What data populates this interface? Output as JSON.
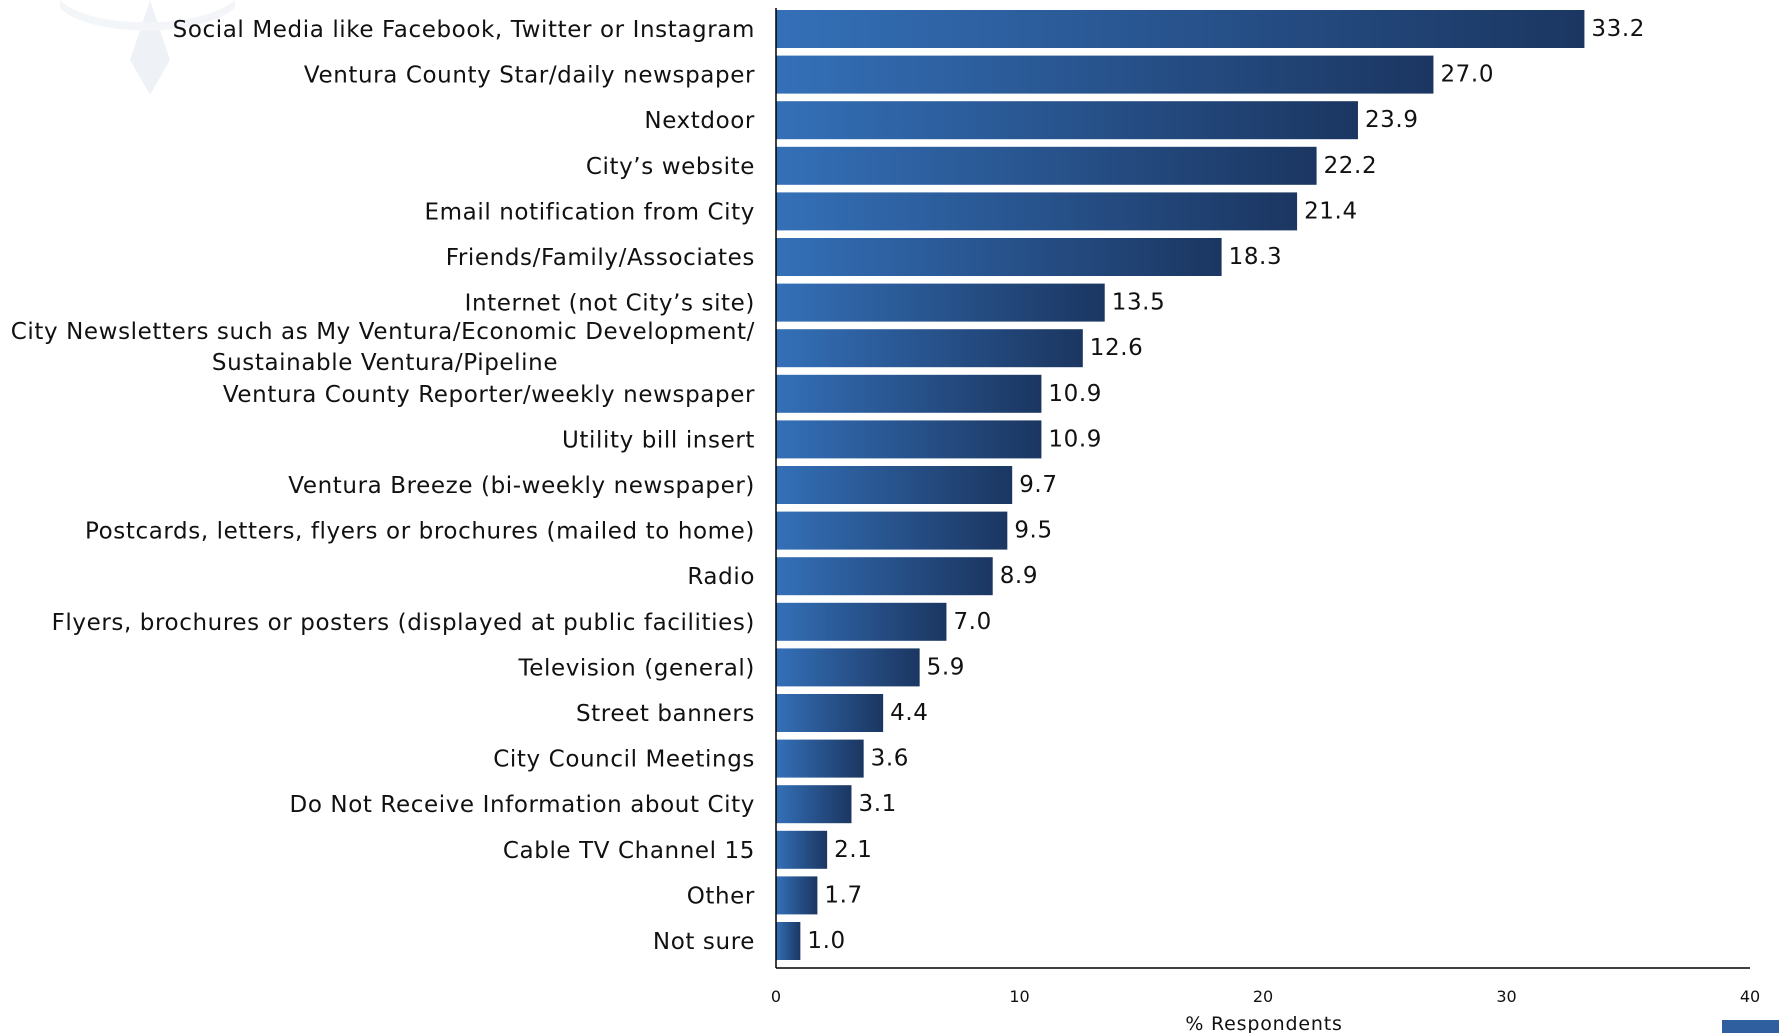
{
  "chart_data": {
    "type": "bar",
    "orientation": "horizontal",
    "categories": [
      "Social Media like Facebook, Twitter or Instagram",
      "Ventura County Star/daily newspaper",
      "Nextdoor",
      "City’s website",
      "Email notification from City",
      "Friends/Family/Associates",
      "Internet (not City’s site)",
      [
        "City Newsletters such as My Ventura/Economic Development/",
        "Sustainable Ventura/Pipeline"
      ],
      "Ventura County Reporter/weekly newspaper",
      "Utility bill insert",
      "Ventura Breeze (bi-weekly newspaper)",
      "Postcards, letters, flyers or brochures (mailed to home)",
      "Radio",
      "Flyers, brochures or posters (displayed at public facilities)",
      "Television (general)",
      "Street banners",
      "City Council Meetings",
      "Do Not Receive Information about City",
      "Cable TV Channel 15",
      "Other",
      "Not sure"
    ],
    "values": [
      33.2,
      27.0,
      23.9,
      22.2,
      21.4,
      18.3,
      13.5,
      12.6,
      10.9,
      10.9,
      9.7,
      9.5,
      8.9,
      7.0,
      5.9,
      4.4,
      3.6,
      3.1,
      2.1,
      1.7,
      1.0
    ],
    "value_labels": [
      "33.2",
      "27.0",
      "23.9",
      "22.2",
      "21.4",
      "18.3",
      "13.5",
      "12.6",
      "10.9",
      "10.9",
      "9.7",
      "9.5",
      "8.9",
      "7.0",
      "5.9",
      "4.4",
      "3.6",
      "3.1",
      "2.1",
      "1.7",
      "1.0"
    ],
    "xlabel": "% Respondents",
    "ylabel": "",
    "xlim": [
      0,
      40
    ],
    "xticks": [
      "0",
      "10",
      "20",
      "30",
      "40"
    ],
    "grid": false,
    "colors": {
      "bar_light": "#3470b8",
      "bar_dark": "#1b3661",
      "axis": "#000000"
    }
  }
}
